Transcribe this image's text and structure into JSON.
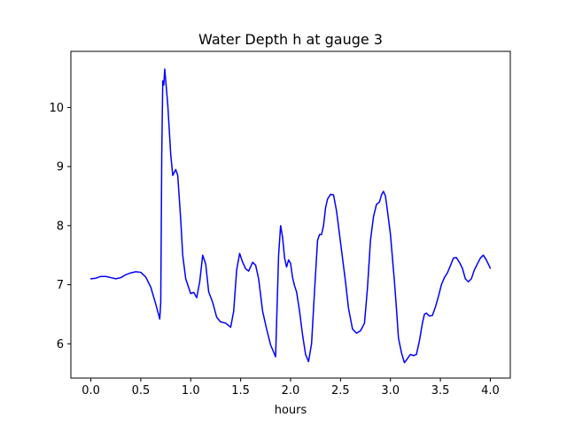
{
  "chart_data": {
    "type": "line",
    "title": "Water Depth h at gauge 3",
    "xlabel": "hours",
    "ylabel": "",
    "xlim": [
      -0.2,
      4.2
    ],
    "ylim": [
      5.42,
      10.95
    ],
    "xticks": [
      0.0,
      0.5,
      1.0,
      1.5,
      2.0,
      2.5,
      3.0,
      3.5,
      4.0
    ],
    "xtick_labels": [
      "0.0",
      "0.5",
      "1.0",
      "1.5",
      "2.0",
      "2.5",
      "3.0",
      "3.5",
      "4.0"
    ],
    "yticks": [
      6,
      7,
      8,
      9,
      10
    ],
    "ytick_labels": [
      "6",
      "7",
      "8",
      "9",
      "10"
    ],
    "grid": false,
    "series": [
      {
        "color": "#0000ff",
        "x": [
          0.0,
          0.05,
          0.1,
          0.15,
          0.2,
          0.25,
          0.3,
          0.35,
          0.4,
          0.45,
          0.5,
          0.55,
          0.6,
          0.65,
          0.69,
          0.7,
          0.71,
          0.72,
          0.73,
          0.74,
          0.75,
          0.77,
          0.8,
          0.82,
          0.85,
          0.87,
          0.9,
          0.92,
          0.95,
          1.0,
          1.03,
          1.06,
          1.09,
          1.12,
          1.15,
          1.18,
          1.22,
          1.26,
          1.3,
          1.35,
          1.4,
          1.43,
          1.46,
          1.49,
          1.52,
          1.55,
          1.58,
          1.62,
          1.65,
          1.68,
          1.72,
          1.76,
          1.8,
          1.85,
          1.88,
          1.9,
          1.92,
          1.94,
          1.96,
          1.98,
          2.0,
          2.02,
          2.04,
          2.06,
          2.09,
          2.12,
          2.15,
          2.18,
          2.21,
          2.24,
          2.27,
          2.29,
          2.31,
          2.33,
          2.35,
          2.37,
          2.4,
          2.43,
          2.46,
          2.49,
          2.52,
          2.55,
          2.58,
          2.62,
          2.66,
          2.7,
          2.74,
          2.77,
          2.8,
          2.83,
          2.86,
          2.89,
          2.91,
          2.93,
          2.95,
          2.97,
          3.0,
          3.02,
          3.04,
          3.06,
          3.08,
          3.11,
          3.14,
          3.17,
          3.2,
          3.23,
          3.26,
          3.29,
          3.32,
          3.34,
          3.36,
          3.39,
          3.42,
          3.45,
          3.48,
          3.51,
          3.54,
          3.57,
          3.6,
          3.63,
          3.66,
          3.69,
          3.72,
          3.75,
          3.78,
          3.81,
          3.84,
          3.87,
          3.9,
          3.93,
          3.96,
          4.0
        ],
        "y": [
          7.1,
          7.11,
          7.14,
          7.14,
          7.12,
          7.1,
          7.12,
          7.17,
          7.2,
          7.22,
          7.21,
          7.13,
          6.96,
          6.67,
          6.42,
          6.7,
          9.2,
          10.45,
          10.38,
          10.65,
          10.45,
          10.05,
          9.2,
          8.85,
          8.95,
          8.85,
          8.1,
          7.5,
          7.1,
          6.85,
          6.87,
          6.78,
          7.05,
          7.5,
          7.35,
          6.88,
          6.7,
          6.45,
          6.37,
          6.35,
          6.28,
          6.55,
          7.25,
          7.53,
          7.38,
          7.27,
          7.23,
          7.38,
          7.33,
          7.1,
          6.55,
          6.25,
          5.98,
          5.78,
          7.5,
          8.0,
          7.8,
          7.45,
          7.3,
          7.42,
          7.36,
          7.12,
          6.98,
          6.88,
          6.55,
          6.15,
          5.82,
          5.7,
          6.0,
          6.9,
          7.75,
          7.85,
          7.85,
          8.0,
          8.3,
          8.45,
          8.53,
          8.52,
          8.25,
          7.85,
          7.45,
          7.05,
          6.6,
          6.25,
          6.18,
          6.22,
          6.35,
          6.95,
          7.75,
          8.15,
          8.36,
          8.4,
          8.52,
          8.58,
          8.5,
          8.25,
          7.85,
          7.45,
          7.05,
          6.6,
          6.1,
          5.85,
          5.68,
          5.75,
          5.82,
          5.8,
          5.82,
          6.05,
          6.35,
          6.5,
          6.52,
          6.47,
          6.48,
          6.62,
          6.8,
          7.0,
          7.12,
          7.2,
          7.32,
          7.45,
          7.46,
          7.38,
          7.28,
          7.1,
          7.05,
          7.1,
          7.25,
          7.35,
          7.45,
          7.5,
          7.42,
          7.28
        ]
      }
    ]
  }
}
